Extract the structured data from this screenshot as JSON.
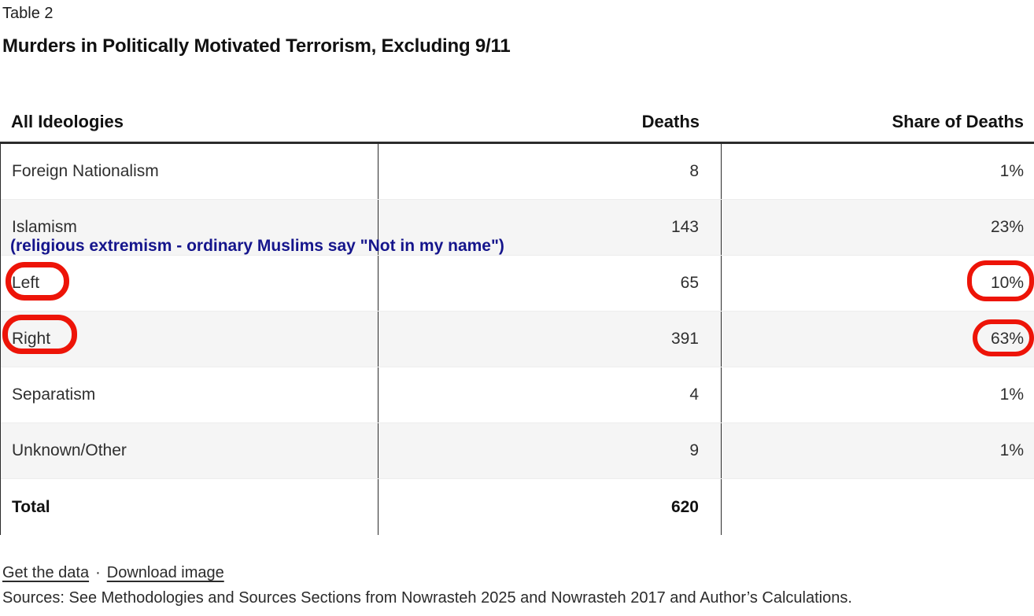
{
  "header": {
    "table_label": "Table 2",
    "title": "Murders in Politically Motivated Terrorism, Excluding 9/11"
  },
  "chart_data": {
    "type": "table",
    "columns": [
      "All Ideologies",
      "Deaths",
      "Share of Deaths"
    ],
    "rows": [
      {
        "ideology": "Foreign Nationalism",
        "deaths": "8",
        "share": "1%"
      },
      {
        "ideology": "Islamism",
        "deaths": "143",
        "share": "23%"
      },
      {
        "ideology": "Left",
        "deaths": "65",
        "share": "10%"
      },
      {
        "ideology": "Right",
        "deaths": "391",
        "share": "63%"
      },
      {
        "ideology": "Separatism",
        "deaths": "4",
        "share": "1%"
      },
      {
        "ideology": "Unknown/Other",
        "deaths": "9",
        "share": "1%"
      }
    ],
    "total": {
      "ideology": "Total",
      "deaths": "620",
      "share": ""
    }
  },
  "annotations": {
    "islamism_note": "(religious extremism - ordinary Muslims say \"Not in my name\")",
    "note_color": "#15158c",
    "highlight_color": "#ed1408",
    "highlighted_values": [
      "Left",
      "Right",
      "10%",
      "63%"
    ]
  },
  "footer": {
    "get_data_link": "Get the data",
    "separator": "·",
    "download_link": "Download image",
    "sources": "Sources: See Methodologies and Sources Sections from Nowrasteh 2025 and Nowrasteh 2017 and Author’s Calculations."
  }
}
